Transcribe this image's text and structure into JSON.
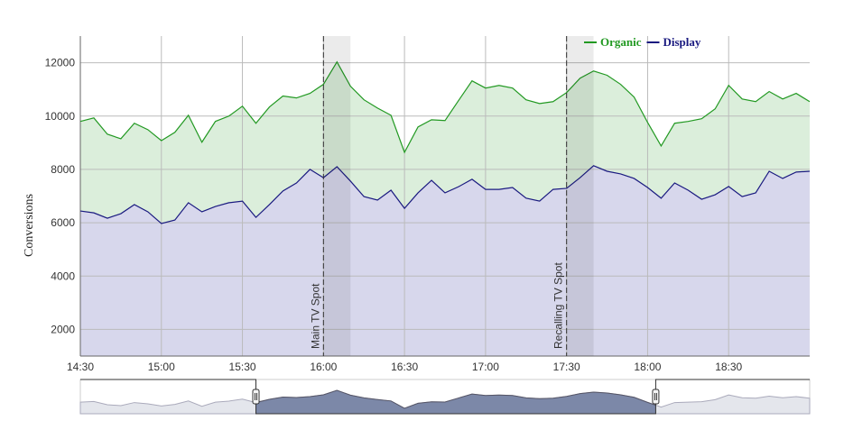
{
  "chart_data": {
    "type": "area",
    "y_label": "Conversions",
    "x": [
      "14:30",
      "14:35",
      "14:40",
      "14:45",
      "14:50",
      "14:55",
      "15:00",
      "15:05",
      "15:10",
      "15:15",
      "15:20",
      "15:25",
      "15:30",
      "15:35",
      "15:40",
      "15:45",
      "15:50",
      "15:55",
      "16:00",
      "16:05",
      "16:10",
      "16:15",
      "16:20",
      "16:25",
      "16:30",
      "16:35",
      "16:40",
      "16:45",
      "16:50",
      "16:55",
      "17:00",
      "17:05",
      "17:10",
      "17:15",
      "17:20",
      "17:25",
      "17:30",
      "17:35",
      "17:40",
      "17:45",
      "17:50",
      "17:55",
      "18:00",
      "18:05",
      "18:10",
      "18:15",
      "18:20",
      "18:25",
      "18:30",
      "18:35",
      "18:40",
      "18:45",
      "18:50",
      "18:55",
      "19:00"
    ],
    "series": [
      {
        "name": "Organic",
        "color": "#229922",
        "fill_color": "#dbeedb",
        "values": [
          9800,
          9930,
          9320,
          9150,
          9730,
          9490,
          9080,
          9390,
          10030,
          9020,
          9800,
          10000,
          10370,
          9730,
          10340,
          10750,
          10680,
          10850,
          11190,
          12030,
          11120,
          10610,
          10300,
          10030,
          8640,
          9590,
          9860,
          9830,
          10580,
          11320,
          11050,
          11150,
          11050,
          10610,
          10470,
          10540,
          10880,
          11420,
          11690,
          11530,
          11190,
          10710,
          9760,
          8880,
          9730,
          9800,
          9900,
          10270,
          11150,
          10640,
          10540,
          10920,
          10640,
          10850,
          10540
        ]
      },
      {
        "name": "Display",
        "color": "#1a1a80",
        "fill_color": "#d7d7ec",
        "values": [
          6440,
          6370,
          6170,
          6340,
          6680,
          6410,
          5970,
          6100,
          6750,
          6410,
          6610,
          6750,
          6810,
          6200,
          6680,
          7190,
          7490,
          8000,
          7690,
          8100,
          7560,
          6980,
          6850,
          7220,
          6540,
          7120,
          7590,
          7120,
          7350,
          7630,
          7250,
          7250,
          7320,
          6920,
          6810,
          7250,
          7290,
          7690,
          8140,
          7930,
          7830,
          7660,
          7320,
          6920,
          7490,
          7220,
          6880,
          7050,
          7360,
          6980,
          7120,
          7930,
          7660,
          7900,
          7930
        ]
      }
    ],
    "xlim": [
      "14:30",
      "19:00"
    ],
    "xticks": [
      "14:30",
      "15:00",
      "15:30",
      "16:00",
      "16:30",
      "17:00",
      "17:30",
      "18:00",
      "18:30"
    ],
    "ylim": [
      1000,
      13000
    ],
    "yticks": [
      2000,
      4000,
      6000,
      8000,
      10000,
      12000
    ],
    "grid": true,
    "legend": "top-right",
    "annotations": [
      {
        "x": "16:00",
        "x_end": "16:10",
        "label": "Main TV Spot"
      },
      {
        "x": "17:30",
        "x_end": "17:40",
        "label": "Recalling TV Spot"
      }
    ],
    "navigator": {
      "range": [
        "15:35",
        "18:03"
      ]
    }
  }
}
